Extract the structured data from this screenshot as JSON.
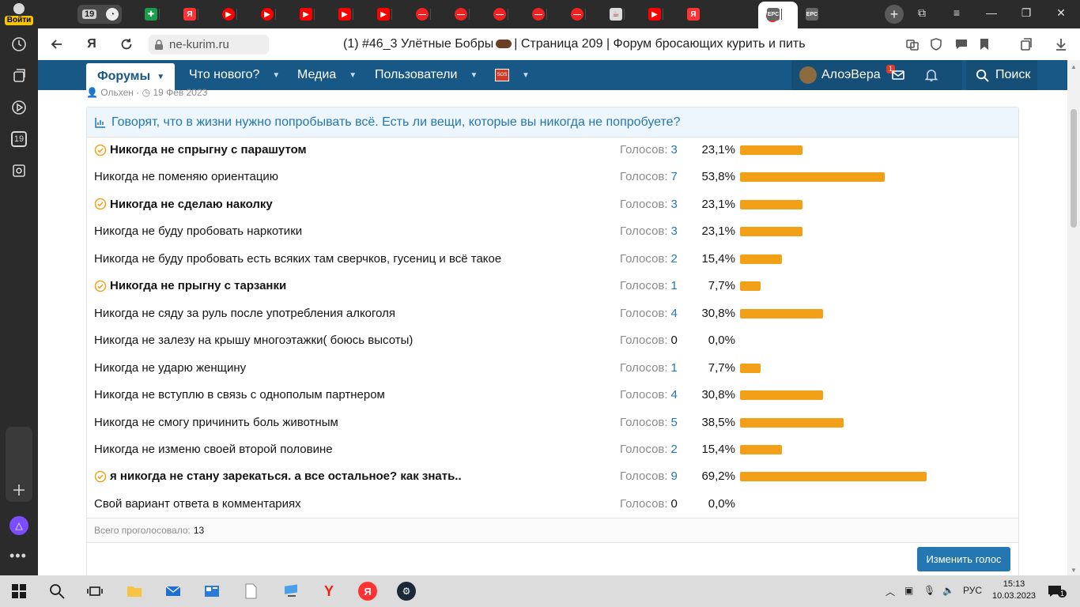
{
  "rail": {
    "login_label": "Войти",
    "calendar_day": "19"
  },
  "tabs": {
    "group_count": "19"
  },
  "address": {
    "host": "ne-kurim.ru",
    "title_before": "(1) #46_3 Улётные Бобры",
    "title_after": "| Страница 209 | Форум бросающих курить и пить"
  },
  "forum_nav": {
    "forums": "Форумы",
    "whats_new": "Что нового?",
    "media": "Медиа",
    "users": "Пользователи",
    "username": "АлоэВера",
    "mail_badge": "1",
    "search": "Поиск"
  },
  "post_meta": {
    "author": "Ольхен",
    "date": "19 Фев 2023"
  },
  "poll": {
    "question": "Говорят, что в жизни нужно попробывать всё. Есть ли вещи, которые вы никогда не попробуете?",
    "votes_label": "Голосов:",
    "accent_color": "#f3a019",
    "link_color": "#2577b1",
    "options": [
      {
        "label": "Никогда не спрыгну с парашутом",
        "votes": "3",
        "percent": "23,1%",
        "share": 23.1,
        "chosen": true
      },
      {
        "label": "Никогда не поменяю ориентацию",
        "votes": "7",
        "percent": "53,8%",
        "share": 53.8,
        "chosen": false
      },
      {
        "label": "Никогда не сделаю наколку",
        "votes": "3",
        "percent": "23,1%",
        "share": 23.1,
        "chosen": true
      },
      {
        "label": "Никогда не буду пробовать наркотики",
        "votes": "3",
        "percent": "23,1%",
        "share": 23.1,
        "chosen": false
      },
      {
        "label": "Никогда не буду пробовать есть всяких там сверчков, гусениц и всё такое",
        "votes": "2",
        "percent": "15,4%",
        "share": 15.4,
        "chosen": false
      },
      {
        "label": "Никогда не прыгну с тарзанки",
        "votes": "1",
        "percent": "7,7%",
        "share": 7.7,
        "chosen": true
      },
      {
        "label": "Никогда не сяду за руль после употребления алкоголя",
        "votes": "4",
        "percent": "30,8%",
        "share": 30.8,
        "chosen": false
      },
      {
        "label": "Никогда не залезу на крышу многоэтажки( боюсь высоты)",
        "votes": "0",
        "percent": "0,0%",
        "share": 0,
        "chosen": false
      },
      {
        "label": "Никогда не ударю женщину",
        "votes": "1",
        "percent": "7,7%",
        "share": 7.7,
        "chosen": false
      },
      {
        "label": "Никогда не вступлю в связь с однополым партнером",
        "votes": "4",
        "percent": "30,8%",
        "share": 30.8,
        "chosen": false
      },
      {
        "label": "Никогда не смогу причинить боль животным",
        "votes": "5",
        "percent": "38,5%",
        "share": 38.5,
        "chosen": false
      },
      {
        "label": "Никогда не изменю своей второй половине",
        "votes": "2",
        "percent": "15,4%",
        "share": 15.4,
        "chosen": false
      },
      {
        "label": "я никогда не стану зарекаться. а все остальное? как знать..",
        "votes": "9",
        "percent": "69,2%",
        "share": 69.2,
        "chosen": true
      },
      {
        "label": "Свой вариант ответа в комментариях",
        "votes": "0",
        "percent": "0,0%",
        "share": 0,
        "chosen": false
      }
    ],
    "total_label": "Всего проголосовало:",
    "total_value": "13",
    "change_vote": "Изменить голос"
  },
  "taskbar": {
    "lang": "РУС",
    "time": "15:13",
    "date": "10.03.2023",
    "notif_count": "1"
  }
}
